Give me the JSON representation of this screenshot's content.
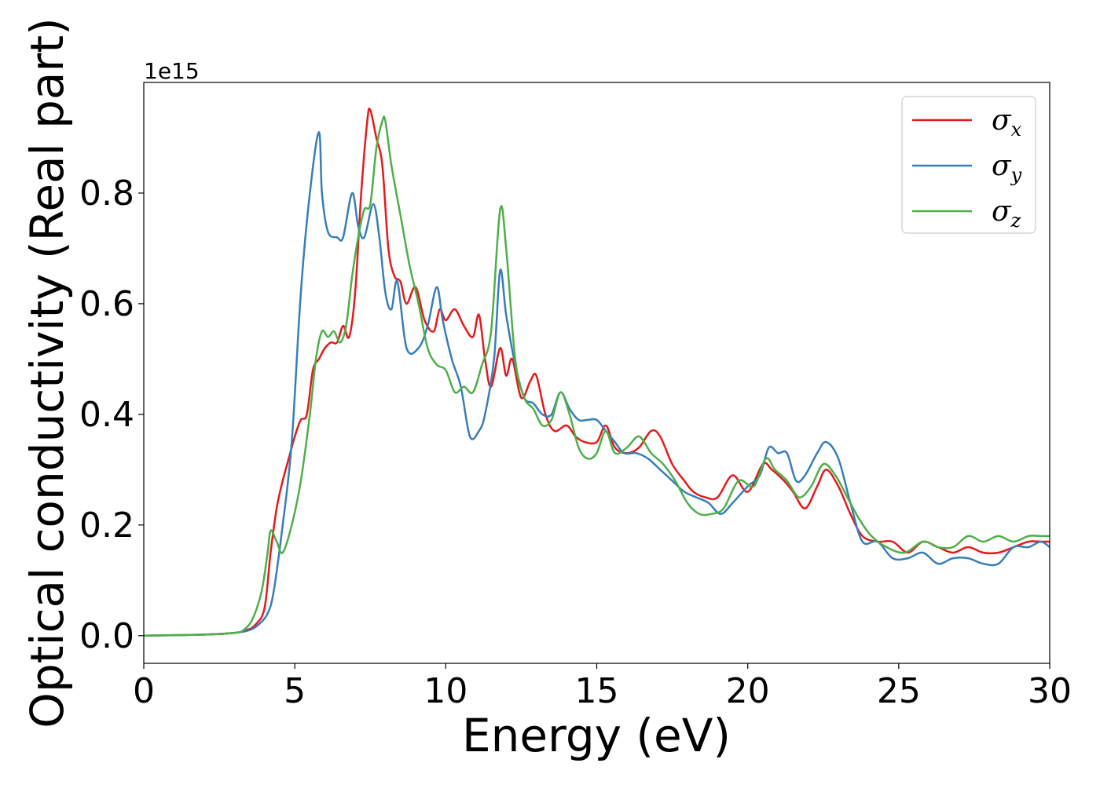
{
  "chart_data": {
    "type": "line",
    "title": "",
    "xlabel": "Energy (eV)",
    "ylabel": "Optical conductivity (Real part)",
    "y_offset_label": "1e15",
    "xlim": [
      0,
      30
    ],
    "ylim": [
      -0.05,
      1.0
    ],
    "x_ticks": [
      0,
      5,
      10,
      15,
      20,
      25,
      30
    ],
    "x_tick_labels": [
      "0",
      "5",
      "10",
      "15",
      "20",
      "25",
      "30"
    ],
    "y_ticks": [
      0.0,
      0.2,
      0.4,
      0.6,
      0.8
    ],
    "y_tick_labels": [
      "0.0",
      "0.2",
      "0.4",
      "0.6",
      "0.8"
    ],
    "grid": false,
    "legend_position": "top-right",
    "series": [
      {
        "name": "σx",
        "legend_symbol": "σ",
        "legend_sub": "x",
        "color": "#e41a1c",
        "points": [
          [
            0,
            0
          ],
          [
            1,
            0.001
          ],
          [
            2,
            0.002
          ],
          [
            3,
            0.005
          ],
          [
            3.4,
            0.01
          ],
          [
            3.7,
            0.02
          ],
          [
            4.0,
            0.05
          ],
          [
            4.2,
            0.15
          ],
          [
            4.4,
            0.23
          ],
          [
            4.6,
            0.28
          ],
          [
            4.8,
            0.32
          ],
          [
            5.0,
            0.36
          ],
          [
            5.2,
            0.39
          ],
          [
            5.4,
            0.4
          ],
          [
            5.6,
            0.48
          ],
          [
            5.8,
            0.5
          ],
          [
            6.0,
            0.52
          ],
          [
            6.2,
            0.53
          ],
          [
            6.4,
            0.53
          ],
          [
            6.6,
            0.56
          ],
          [
            6.8,
            0.54
          ],
          [
            7.0,
            0.62
          ],
          [
            7.2,
            0.8
          ],
          [
            7.4,
            0.93
          ],
          [
            7.5,
            0.95
          ],
          [
            7.7,
            0.9
          ],
          [
            7.9,
            0.85
          ],
          [
            8.1,
            0.7
          ],
          [
            8.3,
            0.65
          ],
          [
            8.5,
            0.64
          ],
          [
            8.7,
            0.6
          ],
          [
            9.0,
            0.63
          ],
          [
            9.3,
            0.57
          ],
          [
            9.6,
            0.55
          ],
          [
            9.8,
            0.59
          ],
          [
            10.0,
            0.57
          ],
          [
            10.3,
            0.59
          ],
          [
            10.6,
            0.56
          ],
          [
            10.9,
            0.54
          ],
          [
            11.1,
            0.58
          ],
          [
            11.3,
            0.5
          ],
          [
            11.5,
            0.45
          ],
          [
            11.8,
            0.52
          ],
          [
            12.0,
            0.47
          ],
          [
            12.2,
            0.5
          ],
          [
            12.5,
            0.43
          ],
          [
            12.8,
            0.46
          ],
          [
            13.0,
            0.47
          ],
          [
            13.3,
            0.4
          ],
          [
            13.6,
            0.37
          ],
          [
            14.0,
            0.38
          ],
          [
            14.3,
            0.36
          ],
          [
            14.6,
            0.35
          ],
          [
            15.0,
            0.35
          ],
          [
            15.3,
            0.38
          ],
          [
            15.6,
            0.34
          ],
          [
            16.0,
            0.33
          ],
          [
            16.4,
            0.34
          ],
          [
            16.8,
            0.37
          ],
          [
            17.1,
            0.36
          ],
          [
            17.5,
            0.31
          ],
          [
            17.9,
            0.28
          ],
          [
            18.2,
            0.26
          ],
          [
            18.6,
            0.25
          ],
          [
            19.0,
            0.25
          ],
          [
            19.5,
            0.29
          ],
          [
            20.0,
            0.26
          ],
          [
            20.5,
            0.31
          ],
          [
            20.8,
            0.3
          ],
          [
            21.2,
            0.28
          ],
          [
            21.5,
            0.26
          ],
          [
            21.9,
            0.23
          ],
          [
            22.3,
            0.27
          ],
          [
            22.6,
            0.3
          ],
          [
            23.0,
            0.27
          ],
          [
            23.4,
            0.22
          ],
          [
            23.8,
            0.18
          ],
          [
            24.3,
            0.17
          ],
          [
            24.8,
            0.17
          ],
          [
            25.3,
            0.15
          ],
          [
            25.8,
            0.17
          ],
          [
            26.3,
            0.16
          ],
          [
            26.8,
            0.15
          ],
          [
            27.3,
            0.16
          ],
          [
            27.8,
            0.15
          ],
          [
            28.3,
            0.15
          ],
          [
            28.8,
            0.16
          ],
          [
            29.3,
            0.17
          ],
          [
            29.7,
            0.17
          ],
          [
            30,
            0.17
          ]
        ]
      },
      {
        "name": "σy",
        "legend_symbol": "σ",
        "legend_sub": "y",
        "color": "#377eb8",
        "points": [
          [
            0,
            0
          ],
          [
            1,
            0.001
          ],
          [
            2,
            0.002
          ],
          [
            3,
            0.005
          ],
          [
            3.5,
            0.01
          ],
          [
            3.8,
            0.02
          ],
          [
            4.1,
            0.04
          ],
          [
            4.3,
            0.08
          ],
          [
            4.6,
            0.2
          ],
          [
            4.9,
            0.35
          ],
          [
            5.2,
            0.62
          ],
          [
            5.5,
            0.8
          ],
          [
            5.8,
            0.91
          ],
          [
            5.9,
            0.8
          ],
          [
            6.1,
            0.73
          ],
          [
            6.4,
            0.72
          ],
          [
            6.6,
            0.72
          ],
          [
            6.9,
            0.8
          ],
          [
            7.1,
            0.74
          ],
          [
            7.3,
            0.72
          ],
          [
            7.6,
            0.78
          ],
          [
            7.8,
            0.72
          ],
          [
            8.0,
            0.62
          ],
          [
            8.2,
            0.59
          ],
          [
            8.4,
            0.64
          ],
          [
            8.7,
            0.52
          ],
          [
            9.1,
            0.52
          ],
          [
            9.4,
            0.56
          ],
          [
            9.7,
            0.63
          ],
          [
            9.9,
            0.57
          ],
          [
            10.2,
            0.5
          ],
          [
            10.5,
            0.45
          ],
          [
            10.8,
            0.36
          ],
          [
            11.1,
            0.37
          ],
          [
            11.3,
            0.4
          ],
          [
            11.6,
            0.5
          ],
          [
            11.8,
            0.66
          ],
          [
            12.0,
            0.58
          ],
          [
            12.3,
            0.49
          ],
          [
            12.6,
            0.43
          ],
          [
            12.9,
            0.42
          ],
          [
            13.2,
            0.4
          ],
          [
            13.5,
            0.4
          ],
          [
            13.8,
            0.44
          ],
          [
            14.1,
            0.41
          ],
          [
            14.4,
            0.39
          ],
          [
            14.7,
            0.39
          ],
          [
            15.0,
            0.39
          ],
          [
            15.3,
            0.37
          ],
          [
            15.6,
            0.35
          ],
          [
            15.9,
            0.33
          ],
          [
            16.3,
            0.33
          ],
          [
            16.7,
            0.32
          ],
          [
            17.1,
            0.3
          ],
          [
            17.5,
            0.28
          ],
          [
            17.9,
            0.26
          ],
          [
            18.3,
            0.25
          ],
          [
            18.7,
            0.24
          ],
          [
            19.1,
            0.22
          ],
          [
            19.5,
            0.24
          ],
          [
            20.0,
            0.27
          ],
          [
            20.4,
            0.29
          ],
          [
            20.7,
            0.34
          ],
          [
            21.0,
            0.33
          ],
          [
            21.3,
            0.33
          ],
          [
            21.6,
            0.28
          ],
          [
            21.9,
            0.29
          ],
          [
            22.3,
            0.33
          ],
          [
            22.6,
            0.35
          ],
          [
            23.0,
            0.32
          ],
          [
            23.4,
            0.24
          ],
          [
            23.8,
            0.17
          ],
          [
            24.3,
            0.17
          ],
          [
            24.8,
            0.14
          ],
          [
            25.3,
            0.14
          ],
          [
            25.8,
            0.15
          ],
          [
            26.3,
            0.13
          ],
          [
            26.8,
            0.14
          ],
          [
            27.3,
            0.14
          ],
          [
            27.8,
            0.13
          ],
          [
            28.3,
            0.13
          ],
          [
            28.8,
            0.16
          ],
          [
            29.3,
            0.16
          ],
          [
            29.7,
            0.17
          ],
          [
            30,
            0.16
          ]
        ]
      },
      {
        "name": "σz",
        "legend_symbol": "σ",
        "legend_sub": "z",
        "color": "#4daf4a",
        "points": [
          [
            0,
            0
          ],
          [
            1,
            0.001
          ],
          [
            2,
            0.002
          ],
          [
            3,
            0.005
          ],
          [
            3.3,
            0.01
          ],
          [
            3.6,
            0.03
          ],
          [
            3.9,
            0.08
          ],
          [
            4.1,
            0.15
          ],
          [
            4.2,
            0.19
          ],
          [
            4.4,
            0.17
          ],
          [
            4.6,
            0.15
          ],
          [
            4.9,
            0.2
          ],
          [
            5.2,
            0.28
          ],
          [
            5.5,
            0.4
          ],
          [
            5.7,
            0.5
          ],
          [
            5.9,
            0.55
          ],
          [
            6.1,
            0.54
          ],
          [
            6.3,
            0.55
          ],
          [
            6.5,
            0.53
          ],
          [
            6.7,
            0.56
          ],
          [
            6.9,
            0.65
          ],
          [
            7.1,
            0.72
          ],
          [
            7.3,
            0.77
          ],
          [
            7.5,
            0.78
          ],
          [
            7.7,
            0.88
          ],
          [
            7.9,
            0.93
          ],
          [
            8.0,
            0.93
          ],
          [
            8.2,
            0.85
          ],
          [
            8.5,
            0.76
          ],
          [
            8.8,
            0.67
          ],
          [
            9.1,
            0.6
          ],
          [
            9.4,
            0.52
          ],
          [
            9.7,
            0.49
          ],
          [
            10.0,
            0.48
          ],
          [
            10.3,
            0.44
          ],
          [
            10.6,
            0.45
          ],
          [
            10.9,
            0.44
          ],
          [
            11.2,
            0.49
          ],
          [
            11.5,
            0.55
          ],
          [
            11.8,
            0.77
          ],
          [
            12.0,
            0.7
          ],
          [
            12.3,
            0.5
          ],
          [
            12.6,
            0.43
          ],
          [
            12.9,
            0.41
          ],
          [
            13.2,
            0.38
          ],
          [
            13.5,
            0.39
          ],
          [
            13.8,
            0.44
          ],
          [
            14.1,
            0.4
          ],
          [
            14.4,
            0.34
          ],
          [
            14.7,
            0.32
          ],
          [
            15.0,
            0.33
          ],
          [
            15.3,
            0.37
          ],
          [
            15.6,
            0.33
          ],
          [
            16.0,
            0.34
          ],
          [
            16.4,
            0.36
          ],
          [
            16.8,
            0.33
          ],
          [
            17.2,
            0.31
          ],
          [
            17.6,
            0.28
          ],
          [
            18.0,
            0.24
          ],
          [
            18.4,
            0.22
          ],
          [
            18.8,
            0.22
          ],
          [
            19.2,
            0.23
          ],
          [
            19.7,
            0.28
          ],
          [
            20.2,
            0.27
          ],
          [
            20.6,
            0.32
          ],
          [
            20.9,
            0.3
          ],
          [
            21.3,
            0.28
          ],
          [
            21.7,
            0.25
          ],
          [
            22.1,
            0.27
          ],
          [
            22.5,
            0.31
          ],
          [
            22.9,
            0.29
          ],
          [
            23.3,
            0.25
          ],
          [
            23.7,
            0.21
          ],
          [
            24.1,
            0.18
          ],
          [
            24.6,
            0.16
          ],
          [
            25.2,
            0.15
          ],
          [
            25.8,
            0.17
          ],
          [
            26.3,
            0.16
          ],
          [
            26.8,
            0.16
          ],
          [
            27.3,
            0.18
          ],
          [
            27.8,
            0.17
          ],
          [
            28.3,
            0.18
          ],
          [
            28.8,
            0.17
          ],
          [
            29.3,
            0.18
          ],
          [
            29.7,
            0.18
          ],
          [
            30,
            0.18
          ]
        ]
      }
    ]
  }
}
